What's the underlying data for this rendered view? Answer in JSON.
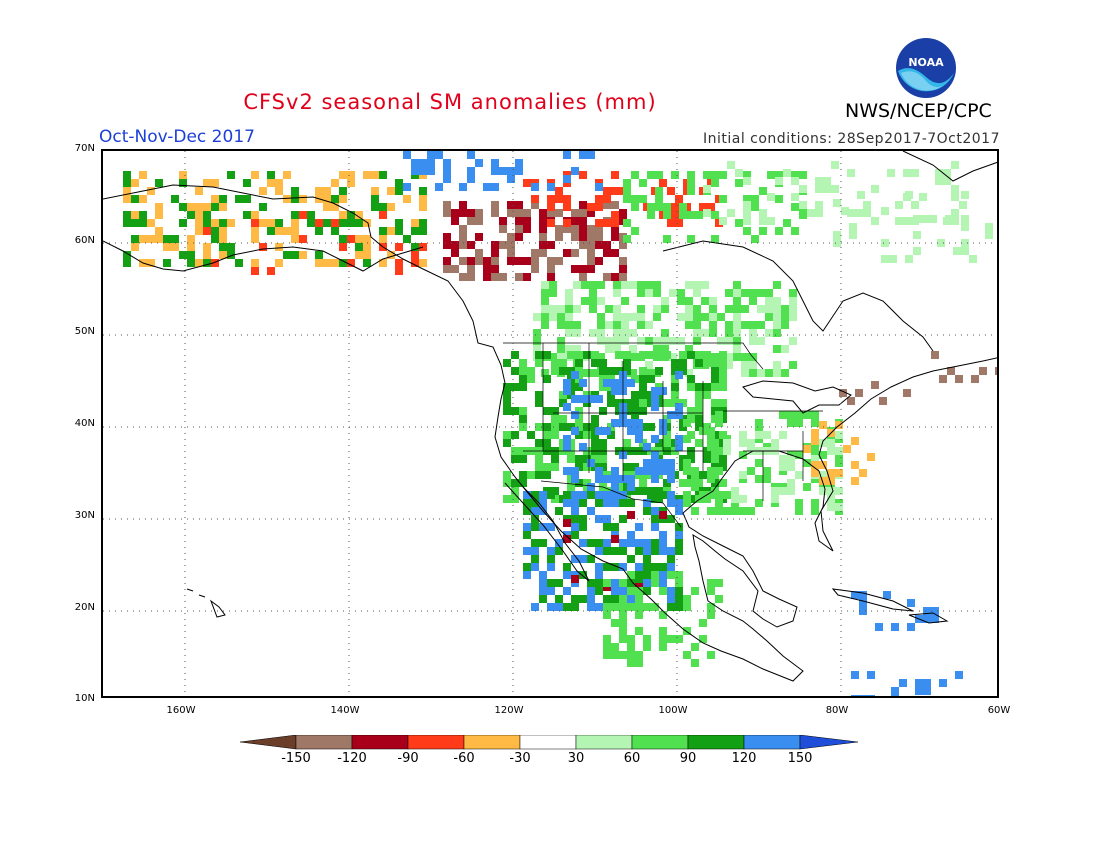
{
  "header": {
    "title": "CFSv2 seasonal SM anomalies (mm)",
    "season": "Oct-Nov-Dec 2017",
    "initial_conditions": "Initial conditions: 28Sep2017-7Oct2017",
    "agency": "NWS/NCEP/CPC",
    "logo_text": "NOAA"
  },
  "axes": {
    "lat_labels": [
      "70N",
      "60N",
      "50N",
      "40N",
      "30N",
      "20N",
      "10N"
    ],
    "lon_labels": [
      "160W",
      "140W",
      "120W",
      "100W",
      "80W",
      "60W"
    ]
  },
  "legend": {
    "labels": [
      "-150",
      "-120",
      "-90",
      "-60",
      "-30",
      "30",
      "60",
      "90",
      "120",
      "150"
    ],
    "colors": [
      "#6b3e2a",
      "#a07868",
      "#a8001a",
      "#ff3b1a",
      "#ffba45",
      "#ffffff",
      "#b4f5b4",
      "#50e050",
      "#14a014",
      "#3a8ef0",
      "#1f4fd8"
    ]
  }
}
